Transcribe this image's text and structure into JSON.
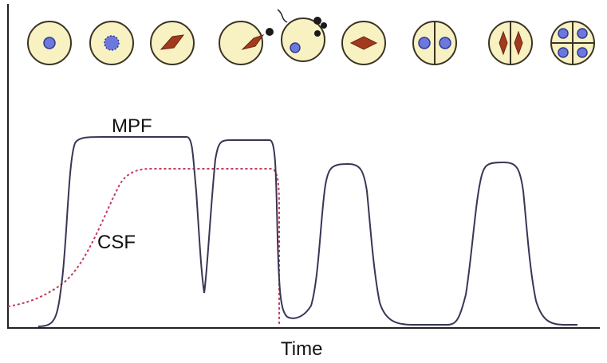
{
  "labels": {
    "mpf": "MPF",
    "csf": "CSF",
    "x_axis": "Time"
  },
  "colors": {
    "mpf_line": "#3a3555",
    "csf_line": "#c03c5a",
    "cell_fill": "#f8f1c2",
    "nucleus": "#6d78dd",
    "spindle": "#a23a1e"
  },
  "stages": [
    "interphase-nucleus",
    "germinal-vesicle-breakdown",
    "meiosis-i-spindle",
    "first-polar-body-extrusion",
    "fertilization",
    "mitotic-spindle",
    "two-cell",
    "two-cell-mitosis",
    "four-cell"
  ]
}
